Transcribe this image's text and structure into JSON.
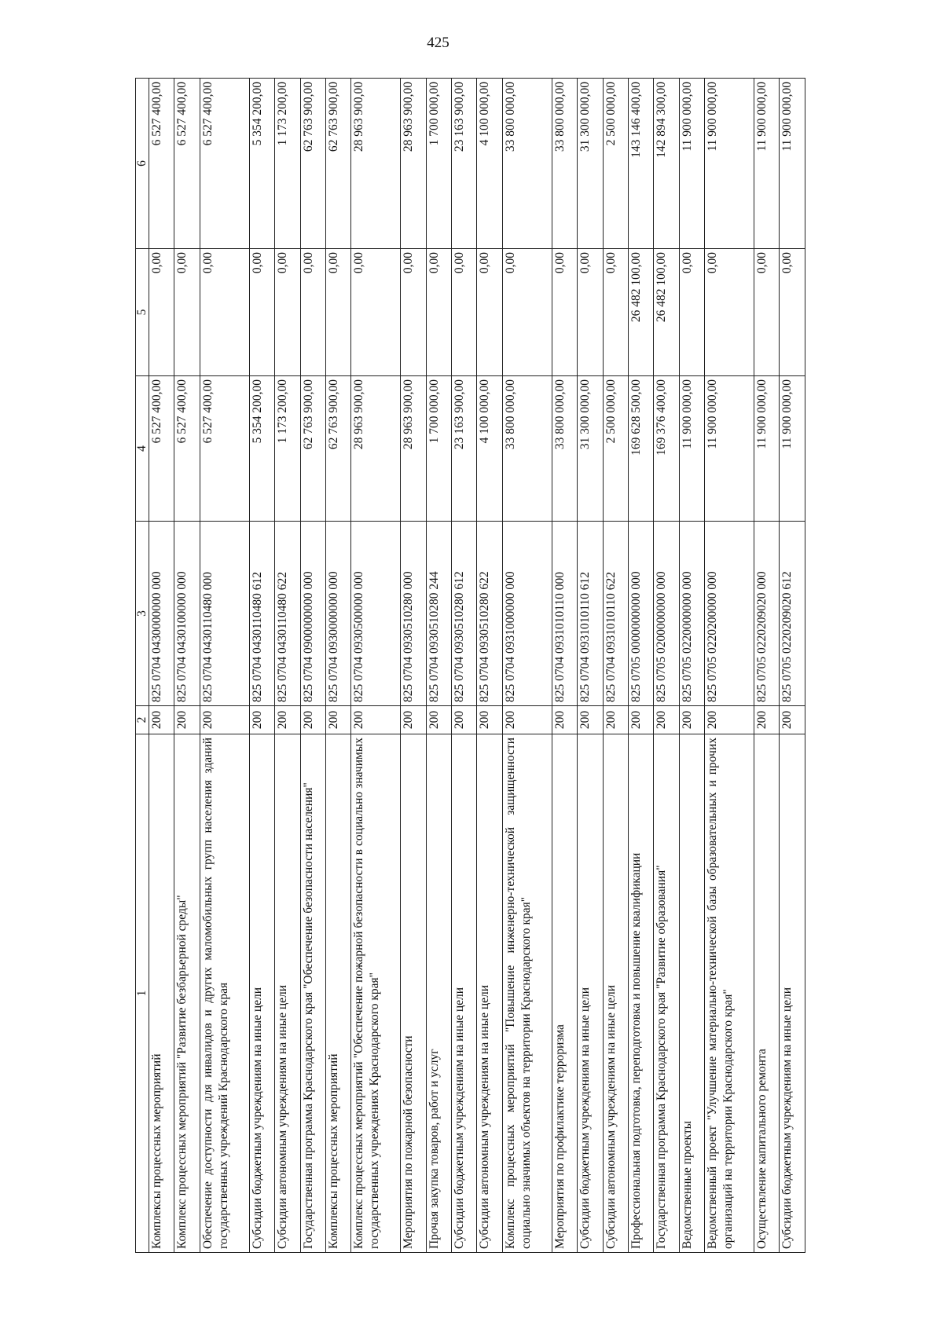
{
  "page_number": "425",
  "table": {
    "headers": [
      "1",
      "2",
      "3",
      "4",
      "5",
      "6"
    ],
    "rows": [
      [
        "Комплексы процессных мероприятий",
        "200",
        "825 0704 0430000000 000",
        "6 527 400,00",
        "0,00",
        "6 527 400,00"
      ],
      [
        "Комплекс процессных мероприятий \"Развитие безбарьерной среды\"",
        "200",
        "825 0704 0430100000 000",
        "6 527 400,00",
        "0,00",
        "6 527 400,00"
      ],
      [
        "Обеспечение доступности для инвалидов и других маломобильных групп населения зданий государственных учреждений Краснодарского края",
        "200",
        "825 0704 0430110480 000",
        "6 527 400,00",
        "0,00",
        "6 527 400,00"
      ],
      [
        "Субсидии бюджетным учреждениям на иные цели",
        "200",
        "825 0704 0430110480 612",
        "5 354 200,00",
        "0,00",
        "5 354 200,00"
      ],
      [
        "Субсидии автономным учреждениям на иные цели",
        "200",
        "825 0704 0430110480 622",
        "1 173 200,00",
        "0,00",
        "1 173 200,00"
      ],
      [
        "Государственная программа Краснодарского края \"Обеспечение безопасности населения\"",
        "200",
        "825 0704 0900000000 000",
        "62 763 900,00",
        "0,00",
        "62 763 900,00"
      ],
      [
        "Комплексы процессных мероприятий",
        "200",
        "825 0704 0930000000 000",
        "62 763 900,00",
        "0,00",
        "62 763 900,00"
      ],
      [
        "Комплекс процессных мероприятий \"Обеспечение пожарной безопасности в социально значимых государственных учреждениях Краснодарского края\"",
        "200",
        "825 0704 0930500000 000",
        "28 963 900,00",
        "0,00",
        "28 963 900,00"
      ],
      [
        "Мероприятия по пожарной безопасности",
        "200",
        "825 0704 0930510280 000",
        "28 963 900,00",
        "0,00",
        "28 963 900,00"
      ],
      [
        "Прочая закупка товаров, работ и услуг",
        "200",
        "825 0704 0930510280 244",
        "1 700 000,00",
        "0,00",
        "1 700 000,00"
      ],
      [
        "Субсидии бюджетным учреждениям на иные цели",
        "200",
        "825 0704 0930510280 612",
        "23 163 900,00",
        "0,00",
        "23 163 900,00"
      ],
      [
        "Субсидии автономным учреждениям на иные цели",
        "200",
        "825 0704 0930510280 622",
        "4 100 000,00",
        "0,00",
        "4 100 000,00"
      ],
      [
        "Комплекс процессных мероприятий \"Повышение инженерно-технической защищенности социально значимых объектов на территории Краснодарского края\"",
        "200",
        "825 0704 0931000000 000",
        "33 800 000,00",
        "0,00",
        "33 800 000,00"
      ],
      [
        "Мероприятия по профилактике терроризма",
        "200",
        "825 0704 0931010110 000",
        "33 800 000,00",
        "0,00",
        "33 800 000,00"
      ],
      [
        "Субсидии бюджетным учреждениям на иные цели",
        "200",
        "825 0704 0931010110 612",
        "31 300 000,00",
        "0,00",
        "31 300 000,00"
      ],
      [
        "Субсидии автономным учреждениям на иные цели",
        "200",
        "825 0704 0931010110 622",
        "2 500 000,00",
        "0,00",
        "2 500 000,00"
      ],
      [
        "Профессиональная подготовка, переподготовка и повышение квалификации",
        "200",
        "825 0705 0000000000 000",
        "169 628 500,00",
        "26 482 100,00",
        "143 146 400,00"
      ],
      [
        "Государственная программа Краснодарского края \"Развитие образования\"",
        "200",
        "825 0705 0200000000 000",
        "169 376 400,00",
        "26 482 100,00",
        "142 894 300,00"
      ],
      [
        "Ведомственные проекты",
        "200",
        "825 0705 0220000000 000",
        "11 900 000,00",
        "0,00",
        "11 900 000,00"
      ],
      [
        "Ведомственный проект \"Улучшение материально-технической базы образовательных и прочих организаций на территории Краснодарского края\"",
        "200",
        "825 0705 0220200000 000",
        "11 900 000,00",
        "0,00",
        "11 900 000,00"
      ],
      [
        "Осуществление капитального ремонта",
        "200",
        "825 0705 0220209020 000",
        "11 900 000,00",
        "0,00",
        "11 900 000,00"
      ],
      [
        "Субсидии бюджетным учреждениям на иные цели",
        "200",
        "825 0705 0220209020 612",
        "11 900 000,00",
        "0,00",
        "11 900 000,00"
      ]
    ]
  }
}
